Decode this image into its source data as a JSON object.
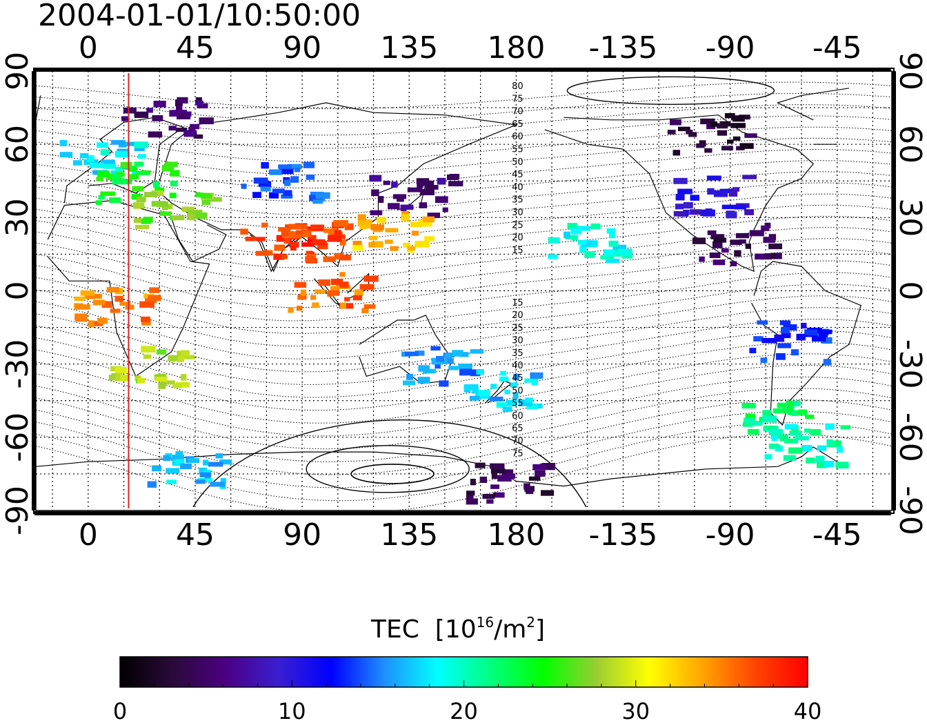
{
  "timestamp": "2004-01-01/10:50:00",
  "map": {
    "projection": "equirectangular",
    "central_meridian": 135,
    "lon_tick_labels": [
      "0",
      "45",
      "90",
      "135",
      "180",
      "-135",
      "-90",
      "-45"
    ],
    "lat_tick_labels": [
      "90",
      "60",
      "30",
      "0",
      "-30",
      "-60",
      "-90"
    ],
    "lon_ticks": [
      0,
      45,
      90,
      135,
      180,
      -135,
      -90,
      -45
    ],
    "lat_ticks": [
      90,
      60,
      30,
      0,
      -30,
      -60,
      -90
    ],
    "grid": true,
    "grid_step_deg": 15,
    "marker_line": {
      "lon": 17,
      "color": "#e02020"
    },
    "contour_labels_north": [
      "80",
      "75",
      "70",
      "65",
      "60",
      "55",
      "50",
      "45",
      "40",
      "35",
      "30",
      "25",
      "20",
      "15"
    ],
    "contour_labels_south": [
      "15",
      "20",
      "25",
      "30",
      "35",
      "40",
      "45",
      "50",
      "55",
      "60",
      "65",
      "70",
      "75"
    ]
  },
  "colorbar": {
    "title": "TEC",
    "unit_base": "10",
    "unit_exp": "16",
    "unit_rest": "/m",
    "unit_exp2": "2",
    "min": 0,
    "max": 40,
    "tick_labels": [
      "0",
      "10",
      "20",
      "30",
      "40"
    ],
    "ticks": [
      0,
      10,
      20,
      30,
      40
    ],
    "colormap": [
      "#000000",
      "#2a0a3a",
      "#4b0082",
      "#3a1fd0",
      "#0000ff",
      "#1e90ff",
      "#00ffff",
      "#00ff7f",
      "#00ff00",
      "#9acd32",
      "#ffff00",
      "#ffa500",
      "#ff4500",
      "#ff0000"
    ]
  },
  "chart_data": {
    "type": "heatmap",
    "title": "2004-01-01/10:50:00",
    "variable": "TEC",
    "units": "10^16/m^2",
    "value_range": [
      0,
      40
    ],
    "regions": [
      {
        "lon": 5,
        "lat": 55,
        "tec": 18
      },
      {
        "lon": 20,
        "lat": 45,
        "tec": 24
      },
      {
        "lon": 30,
        "lat": 72,
        "tec": 5
      },
      {
        "lon": 35,
        "lat": 35,
        "tec": 27
      },
      {
        "lon": 80,
        "lat": 20,
        "tec": 38
      },
      {
        "lon": 95,
        "lat": 22,
        "tec": 37
      },
      {
        "lon": 100,
        "lat": 0,
        "tec": 36
      },
      {
        "lon": 25,
        "lat": -30,
        "tec": 28
      },
      {
        "lon": 10,
        "lat": -5,
        "tec": 35
      },
      {
        "lon": 80,
        "lat": 45,
        "tec": 14
      },
      {
        "lon": 135,
        "lat": 40,
        "tec": 6
      },
      {
        "lon": 125,
        "lat": 25,
        "tec": 33
      },
      {
        "lon": 145,
        "lat": -30,
        "tec": 15
      },
      {
        "lon": 175,
        "lat": -40,
        "tec": 17
      },
      {
        "lon": 210,
        "lat": 20,
        "tec": 19
      },
      {
        "lon": 260,
        "lat": 40,
        "tec": 10
      },
      {
        "lon": 260,
        "lat": 65,
        "tec": 3
      },
      {
        "lon": 270,
        "lat": 20,
        "tec": 4
      },
      {
        "lon": 295,
        "lat": -20,
        "tec": 13
      },
      {
        "lon": 290,
        "lat": -50,
        "tec": 22
      },
      {
        "lon": 300,
        "lat": -62,
        "tec": 20
      },
      {
        "lon": 40,
        "lat": -72,
        "tec": 17
      },
      {
        "lon": 175,
        "lat": -78,
        "tec": 4
      }
    ]
  }
}
